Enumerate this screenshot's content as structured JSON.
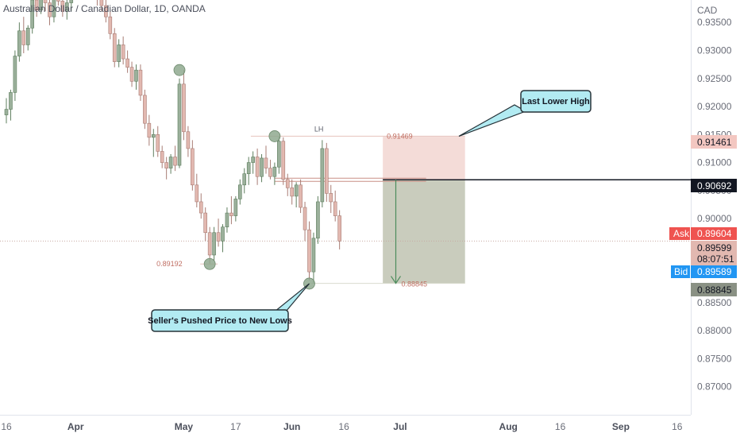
{
  "header": {
    "title": "Australian Dollar / Canadian Dollar, 1D, OANDA"
  },
  "colors": {
    "up": "#9bb09b",
    "up_border": "#5f7f5f",
    "down": "#e2b8b0",
    "down_border": "#a87c74",
    "ask": "#ef5350",
    "bid": "#2196f3",
    "stop_zone": "#f4dcd8",
    "target_zone": "#c9ccbd",
    "callout_fill": "#b2ebf2",
    "callout_border": "#263238",
    "arrow": "#4c8c5c",
    "pivot": "#8fa98f"
  },
  "chart_data": {
    "type": "candlestick",
    "instrument": "Australian Dollar / Canadian Dollar",
    "interval": "1D",
    "source": "OANDA",
    "currency": "CAD",
    "ylim": [
      0.865,
      0.939
    ],
    "y_ticks": [
      "0.93500",
      "0.93000",
      "0.92500",
      "0.92000",
      "0.91500",
      "0.91000",
      "0.90500",
      "0.90000",
      "0.89500",
      "0.89000",
      "0.88500",
      "0.88000",
      "0.87500",
      "0.87000"
    ],
    "y_tick_values": [
      0.935,
      0.93,
      0.925,
      0.92,
      0.915,
      0.91,
      0.905,
      0.9,
      0.895,
      0.89,
      0.885,
      0.88,
      0.875,
      0.87
    ],
    "x_ticks": [
      {
        "label": "16",
        "bar": 0
      },
      {
        "label": "Apr",
        "bar": 16
      },
      {
        "label": "May",
        "bar": 41
      },
      {
        "label": "17",
        "bar": 53
      },
      {
        "label": "Jun",
        "bar": 66
      },
      {
        "label": "16",
        "bar": 78
      },
      {
        "label": "Jul",
        "bar": 91
      },
      {
        "label": "Aug",
        "bar": 116
      },
      {
        "label": "16",
        "bar": 128
      },
      {
        "label": "Sep",
        "bar": 142
      },
      {
        "label": "16",
        "bar": 155
      }
    ],
    "candles": [
      [
        0.9185,
        0.9215,
        0.917,
        0.9195
      ],
      [
        0.9195,
        0.923,
        0.9175,
        0.9225
      ],
      [
        0.9225,
        0.93,
        0.921,
        0.929
      ],
      [
        0.929,
        0.935,
        0.928,
        0.9335
      ],
      [
        0.9335,
        0.936,
        0.9295,
        0.931
      ],
      [
        0.931,
        0.9345,
        0.93,
        0.934
      ],
      [
        0.934,
        0.94,
        0.933,
        0.939
      ],
      [
        0.939,
        0.942,
        0.936,
        0.9372
      ],
      [
        0.9372,
        0.9415,
        0.9365,
        0.9408
      ],
      [
        0.9408,
        0.943,
        0.937,
        0.9385
      ],
      [
        0.9385,
        0.94,
        0.9345,
        0.936
      ],
      [
        0.936,
        0.9405,
        0.935,
        0.9398
      ],
      [
        0.9398,
        0.9425,
        0.938,
        0.9388
      ],
      [
        0.9388,
        0.9415,
        0.936,
        0.937
      ],
      [
        0.937,
        0.9395,
        0.9355,
        0.9385
      ],
      [
        0.9385,
        0.942,
        0.937,
        0.9405
      ],
      [
        0.9405,
        0.944,
        0.9395,
        0.943
      ],
      [
        0.943,
        0.9445,
        0.9395,
        0.941
      ],
      [
        0.941,
        0.944,
        0.94,
        0.9425
      ],
      [
        0.9425,
        0.945,
        0.941,
        0.9435
      ],
      [
        0.9435,
        0.9445,
        0.94,
        0.9415
      ],
      [
        0.9415,
        0.943,
        0.938,
        0.9395
      ],
      [
        0.9395,
        0.941,
        0.937,
        0.938
      ],
      [
        0.938,
        0.9395,
        0.935,
        0.936
      ],
      [
        0.936,
        0.937,
        0.932,
        0.933
      ],
      [
        0.933,
        0.934,
        0.927,
        0.928
      ],
      [
        0.928,
        0.932,
        0.927,
        0.931
      ],
      [
        0.931,
        0.9325,
        0.9275,
        0.9285
      ],
      [
        0.9285,
        0.93,
        0.926,
        0.927
      ],
      [
        0.927,
        0.928,
        0.9235,
        0.9245
      ],
      [
        0.9245,
        0.9275,
        0.923,
        0.9265
      ],
      [
        0.9265,
        0.9275,
        0.921,
        0.922
      ],
      [
        0.922,
        0.923,
        0.916,
        0.917
      ],
      [
        0.917,
        0.9185,
        0.913,
        0.9145
      ],
      [
        0.9145,
        0.916,
        0.911,
        0.915
      ],
      [
        0.915,
        0.9165,
        0.911,
        0.912
      ],
      [
        0.912,
        0.913,
        0.909,
        0.91
      ],
      [
        0.91,
        0.911,
        0.907,
        0.909
      ],
      [
        0.909,
        0.9115,
        0.908,
        0.911
      ],
      [
        0.911,
        0.913,
        0.9085,
        0.9095
      ],
      [
        0.9095,
        0.925,
        0.909,
        0.924
      ],
      [
        0.924,
        0.9265,
        0.914,
        0.9155
      ],
      [
        0.9155,
        0.9165,
        0.911,
        0.9125
      ],
      [
        0.9125,
        0.914,
        0.905,
        0.906
      ],
      [
        0.906,
        0.908,
        0.902,
        0.903
      ],
      [
        0.903,
        0.9045,
        0.9,
        0.901
      ],
      [
        0.901,
        0.902,
        0.896,
        0.8975
      ],
      [
        0.8975,
        0.8985,
        0.892,
        0.8935
      ],
      [
        0.8935,
        0.8985,
        0.8925,
        0.8975
      ],
      [
        0.8975,
        0.9,
        0.895,
        0.896
      ],
      [
        0.896,
        0.899,
        0.894,
        0.8985
      ],
      [
        0.8985,
        0.902,
        0.8975,
        0.901
      ],
      [
        0.901,
        0.904,
        0.899,
        0.9005
      ],
      [
        0.9005,
        0.904,
        0.8995,
        0.9035
      ],
      [
        0.9035,
        0.907,
        0.9025,
        0.906
      ],
      [
        0.906,
        0.909,
        0.9045,
        0.908
      ],
      [
        0.908,
        0.911,
        0.906,
        0.91
      ],
      [
        0.91,
        0.912,
        0.908,
        0.911
      ],
      [
        0.911,
        0.9125,
        0.906,
        0.9075
      ],
      [
        0.9075,
        0.9115,
        0.9065,
        0.9108
      ],
      [
        0.9108,
        0.913,
        0.908,
        0.909
      ],
      [
        0.909,
        0.9105,
        0.907,
        0.9075
      ],
      [
        0.9075,
        0.91,
        0.906,
        0.9092
      ],
      [
        0.9092,
        0.9146,
        0.908,
        0.9138
      ],
      [
        0.9138,
        0.9145,
        0.906,
        0.907
      ],
      [
        0.907,
        0.908,
        0.904,
        0.9055
      ],
      [
        0.9055,
        0.907,
        0.9025,
        0.904
      ],
      [
        0.904,
        0.9065,
        0.902,
        0.906
      ],
      [
        0.906,
        0.907,
        0.901,
        0.902
      ],
      [
        0.902,
        0.903,
        0.896,
        0.898
      ],
      [
        0.898,
        0.8995,
        0.889,
        0.8905
      ],
      [
        0.8905,
        0.8975,
        0.8884,
        0.8965
      ],
      [
        0.8965,
        0.904,
        0.8955,
        0.903
      ],
      [
        0.903,
        0.914,
        0.902,
        0.9125
      ],
      [
        0.9125,
        0.9135,
        0.903,
        0.9045
      ],
      [
        0.9045,
        0.906,
        0.901,
        0.903
      ],
      [
        0.903,
        0.905,
        0.8995,
        0.9005
      ],
      [
        0.9005,
        0.9015,
        0.8945,
        0.896
      ]
    ],
    "pivots": [
      {
        "bar": 40,
        "price": 0.9265,
        "label": ""
      },
      {
        "bar": 47,
        "price": 0.8919,
        "label": "0.89192"
      },
      {
        "bar": 62,
        "price": 0.9147,
        "label": "LH"
      },
      {
        "bar": 70,
        "price": 0.8884,
        "label": ""
      }
    ],
    "annotations": {
      "lh_label": "LH",
      "lh_price_label": "0.91469",
      "low_price_label": "0.89192",
      "target_price_label": "0.88845",
      "callout_top": "Last Lower High",
      "callout_bottom": "Seller's Pushed Price to New Lows"
    },
    "position": {
      "type": "short",
      "entry": 0.90692,
      "stop": 0.91461,
      "target": 0.88845,
      "start_bar": 87,
      "end_bar": 106
    },
    "horizontal_levels": [
      {
        "price": 0.90692,
        "from_bar": 62,
        "to_bar": 97
      }
    ],
    "current": {
      "ask": 0.89604,
      "bid": 0.89589,
      "last": 0.89599,
      "countdown": "08:07:51"
    }
  },
  "price_tags": {
    "stop": "0.91461",
    "entry": "0.90692",
    "ask_label": "Ask",
    "ask_value": "0.89604",
    "last_value": "0.89599",
    "countdown": "08:07:51",
    "bid_label": "Bid",
    "bid_value": "0.89589",
    "target": "0.88845"
  }
}
